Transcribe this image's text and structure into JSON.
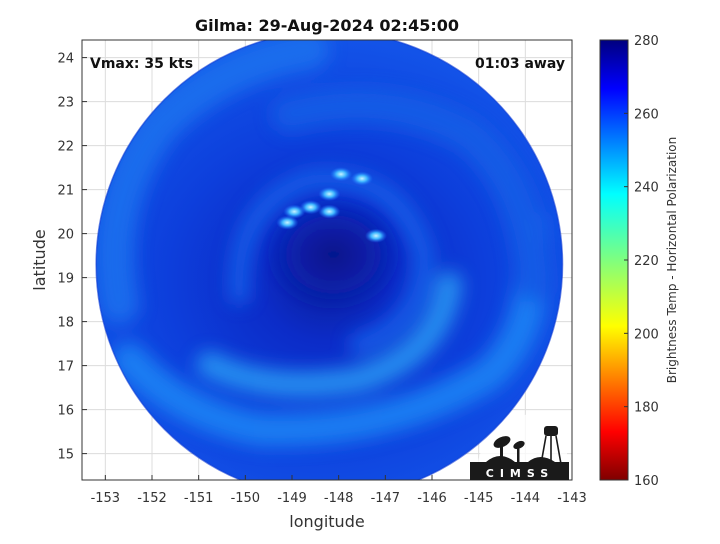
{
  "chart_data": {
    "type": "heatmap",
    "title": "Gilma: 29-Aug-2024 02:45:00",
    "xlabel": "longitude",
    "ylabel": "latitude",
    "xlim": [
      -153.5,
      -143
    ],
    "ylim": [
      14.4,
      24.4
    ],
    "xticks": [
      -153,
      -152,
      -151,
      -150,
      -149,
      -148,
      -147,
      -146,
      -145,
      -144,
      -143
    ],
    "yticks": [
      15,
      16,
      17,
      18,
      19,
      20,
      21,
      22,
      23,
      24
    ],
    "grid": true,
    "annotations": {
      "vmax": "Vmax: 35 kts",
      "away": "01:03 away"
    },
    "storm_center": {
      "lon": -148.2,
      "lat": 19.3
    },
    "swath_radius_lat": 5.3,
    "cold_spots": [
      {
        "lon": -147.5,
        "lat": 21.25
      },
      {
        "lon": -147.95,
        "lat": 21.35
      },
      {
        "lon": -148.2,
        "lat": 20.9
      },
      {
        "lon": -148.6,
        "lat": 20.6
      },
      {
        "lon": -148.95,
        "lat": 20.5
      },
      {
        "lon": -149.1,
        "lat": 20.25
      },
      {
        "lon": -148.2,
        "lat": 20.5
      },
      {
        "lon": -147.2,
        "lat": 19.95
      }
    ],
    "colorbar": {
      "label": "Brightness Temp - Horizontal Polarization",
      "min": 160,
      "max": 280,
      "ticks": [
        280,
        260,
        240,
        220,
        200,
        180,
        160
      ],
      "colormap": "jet"
    },
    "logo": "CIMSS"
  }
}
